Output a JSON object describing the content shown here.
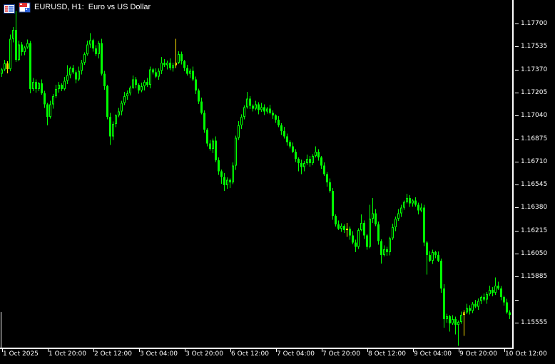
{
  "window": {
    "title": "EURUSD, H1:  Euro vs US Dollar"
  },
  "colors": {
    "background": "#000000",
    "candle": "#00FF00",
    "highlight_candle": "#FFE100",
    "axis": "#FFFFFF",
    "label_text": "#FFFFFF",
    "icon_red": "#E03232",
    "icon_blue": "#2E62D9",
    "icon_navy": "#1C3F94"
  },
  "chart_data": {
    "type": "candlestick",
    "symbol": "EURUSD",
    "timeframe": "H1",
    "description": "Euro vs US Dollar",
    "legend_position": "none",
    "grid": "off",
    "price_axis": {
      "side": "right",
      "ticks": [
        {
          "value": 1.177,
          "label": "1.17700"
        },
        {
          "value": 1.17535,
          "label": "1.17535"
        },
        {
          "value": 1.1737,
          "label": "1.17370"
        },
        {
          "value": 1.17205,
          "label": "1.17205"
        },
        {
          "value": 1.1704,
          "label": "1.17040"
        },
        {
          "value": 1.16875,
          "label": "1.16875"
        },
        {
          "value": 1.1671,
          "label": "1.16710"
        },
        {
          "value": 1.16545,
          "label": "1.16545"
        },
        {
          "value": 1.1638,
          "label": "1.16380"
        },
        {
          "value": 1.16215,
          "label": "1.16215"
        },
        {
          "value": 1.1605,
          "label": "1.16050"
        },
        {
          "value": 1.15885,
          "label": "1.15885"
        },
        {
          "value": 1.1572,
          "label": ""
        },
        {
          "value": 1.15555,
          "label": "1.15555"
        }
      ]
    },
    "time_axis": {
      "side": "bottom",
      "labels": [
        {
          "text": "1 Oct 2025",
          "bar": 0
        },
        {
          "text": "1 Oct 20:00",
          "bar": 16
        },
        {
          "text": "2 Oct 12:00",
          "bar": 32
        },
        {
          "text": "3 Oct 04:00",
          "bar": 48
        },
        {
          "text": "3 Oct 20:00",
          "bar": 64
        },
        {
          "text": "6 Oct 12:00",
          "bar": 80
        },
        {
          "text": "7 Oct 04:00",
          "bar": 96
        },
        {
          "text": "7 Oct 20:00",
          "bar": 112
        },
        {
          "text": "8 Oct 12:00",
          "bar": 128
        },
        {
          "text": "9 Oct 04:00",
          "bar": 144
        },
        {
          "text": "9 Oct 20:00",
          "bar": 160
        },
        {
          "text": "10 Oct 12:00",
          "bar": 176
        }
      ]
    },
    "bars": {
      "bar_count": 179,
      "first_open": 1.1734,
      "closes": [
        1.1737,
        1.17415,
        1.17372,
        1.1759,
        1.17655,
        1.1744,
        1.1755,
        1.17495,
        1.1753,
        1.1756,
        1.1723,
        1.1728,
        1.1723,
        1.1727,
        1.172,
        1.1712,
        1.1703,
        1.1712,
        1.1718,
        1.1723,
        1.1726,
        1.1723,
        1.1729,
        1.1733,
        1.1738,
        1.1735,
        1.173,
        1.1736,
        1.1742,
        1.1748,
        1.1755,
        1.1758,
        1.1752,
        1.1748,
        1.1756,
        1.1734,
        1.1725,
        1.1703,
        1.1689,
        1.1698,
        1.1704,
        1.1707,
        1.1713,
        1.1718,
        1.172,
        1.1724,
        1.173,
        1.1726,
        1.1722,
        1.1725,
        1.1728,
        1.1726,
        1.1737,
        1.1735,
        1.1732,
        1.1736,
        1.1742,
        1.174,
        1.1742,
        1.1738,
        1.174,
        1.1742,
        1.1748,
        1.1743,
        1.1738,
        1.1734,
        1.1736,
        1.173,
        1.1722,
        1.1714,
        1.1706,
        1.1694,
        1.1684,
        1.168,
        1.1686,
        1.1672,
        1.1664,
        1.166,
        1.1654,
        1.1658,
        1.1656,
        1.1668,
        1.1688,
        1.1697,
        1.1703,
        1.171,
        1.1716,
        1.1711,
        1.1709,
        1.1712,
        1.1708,
        1.171,
        1.1707,
        1.1709,
        1.1706,
        1.1704,
        1.1701,
        1.1697,
        1.1693,
        1.1689,
        1.1685,
        1.1682,
        1.1678,
        1.1673,
        1.167,
        1.1667,
        1.167,
        1.1673,
        1.167,
        1.1675,
        1.1678,
        1.1674,
        1.1668,
        1.1662,
        1.1656,
        1.165,
        1.1632,
        1.1626,
        1.1623,
        1.1625,
        1.1622,
        1.1623,
        1.1618,
        1.1613,
        1.161,
        1.1622,
        1.1627,
        1.1618,
        1.161,
        1.163,
        1.1634,
        1.1626,
        1.1614,
        1.1604,
        1.1608,
        1.1606,
        1.1616,
        1.1624,
        1.163,
        1.1634,
        1.1638,
        1.1642,
        1.1645,
        1.1641,
        1.1643,
        1.164,
        1.1636,
        1.1638,
        1.1613,
        1.1604,
        1.16,
        1.1606,
        1.1604,
        1.16,
        1.158,
        1.1558,
        1.156,
        1.1555,
        1.1558,
        1.1554,
        1.1556,
        1.1561,
        1.1563,
        1.1566,
        1.1564,
        1.1569,
        1.1567,
        1.1571,
        1.1574,
        1.1572,
        1.1576,
        1.1579,
        1.1577,
        1.1582,
        1.158,
        1.1574,
        1.157,
        1.1563,
        1.1561
      ],
      "high_overrides": {
        "5": 1.1779,
        "23": 1.174,
        "31": 1.1763,
        "56": 1.1746,
        "61": 1.1759,
        "62": 1.175,
        "86": 1.1721,
        "110": 1.1682,
        "121": 1.1627,
        "126": 1.1633,
        "129": 1.164,
        "130": 1.1645,
        "142": 1.1648,
        "173": 1.1588
      },
      "low_overrides": {
        "16": 1.1697,
        "38": 1.1683,
        "61": 1.1738,
        "77": 1.1655,
        "78": 1.165,
        "80": 1.1652,
        "104": 1.1664,
        "105": 1.1662,
        "121": 1.1617,
        "124": 1.1606,
        "133": 1.1598,
        "149": 1.159,
        "155": 1.1552,
        "157": 1.1549,
        "159": 1.1547,
        "160": 1.1539,
        "162": 1.1546
      },
      "yellow_bars": [
        2,
        61,
        121,
        162
      ]
    }
  }
}
